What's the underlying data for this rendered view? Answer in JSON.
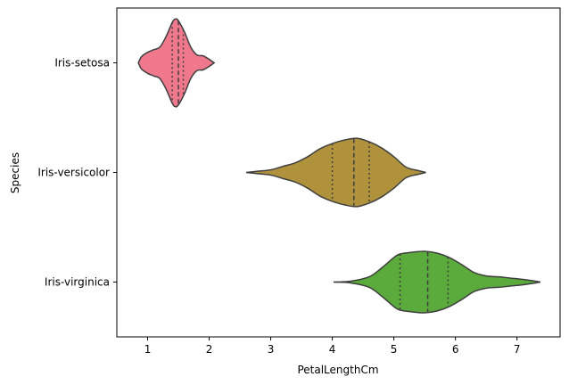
{
  "chart_data": {
    "type": "violin",
    "orientation": "horizontal",
    "title": "",
    "xlabel": "PetalLengthCm",
    "ylabel": "Species",
    "xlim": [
      0.5,
      7.7
    ],
    "xticks": [
      1,
      2,
      3,
      4,
      5,
      6,
      7
    ],
    "grid": false,
    "inner": "quartile",
    "categories": [
      "Iris-setosa",
      "Iris-versicolor",
      "Iris-virginica"
    ],
    "colors": [
      "#f0788c",
      "#b1923c",
      "#5aaa3c"
    ],
    "line_color": "#3f3f3f",
    "series": [
      {
        "category": "Iris-setosa",
        "min": 0.85,
        "max": 2.08,
        "quartiles": [
          1.4,
          1.5,
          1.58
        ],
        "density": [
          [
            0.85,
            0.0
          ],
          [
            0.9,
            0.07
          ],
          [
            1.0,
            0.12
          ],
          [
            1.1,
            0.15
          ],
          [
            1.2,
            0.18
          ],
          [
            1.3,
            0.3
          ],
          [
            1.4,
            0.46
          ],
          [
            1.45,
            0.5
          ],
          [
            1.5,
            0.48
          ],
          [
            1.6,
            0.35
          ],
          [
            1.7,
            0.18
          ],
          [
            1.8,
            0.09
          ],
          [
            1.9,
            0.08
          ],
          [
            2.0,
            0.04
          ],
          [
            2.08,
            0.0
          ]
        ]
      },
      {
        "category": "Iris-versicolor",
        "min": 2.6,
        "max": 5.52,
        "quartiles": [
          4.0,
          4.35,
          4.6
        ],
        "density": [
          [
            2.6,
            0.0
          ],
          [
            2.8,
            0.015
          ],
          [
            3.0,
            0.03
          ],
          [
            3.2,
            0.07
          ],
          [
            3.4,
            0.11
          ],
          [
            3.6,
            0.18
          ],
          [
            3.8,
            0.27
          ],
          [
            4.0,
            0.33
          ],
          [
            4.2,
            0.37
          ],
          [
            4.4,
            0.39
          ],
          [
            4.6,
            0.35
          ],
          [
            4.8,
            0.28
          ],
          [
            5.0,
            0.18
          ],
          [
            5.2,
            0.06
          ],
          [
            5.4,
            0.02
          ],
          [
            5.52,
            0.0
          ]
        ]
      },
      {
        "category": "Iris-virginica",
        "min": 4.02,
        "max": 7.38,
        "quartiles": [
          5.1,
          5.55,
          5.88
        ],
        "density": [
          [
            4.02,
            0.0
          ],
          [
            4.3,
            0.01
          ],
          [
            4.6,
            0.06
          ],
          [
            4.8,
            0.16
          ],
          [
            5.0,
            0.28
          ],
          [
            5.1,
            0.32
          ],
          [
            5.3,
            0.34
          ],
          [
            5.5,
            0.35
          ],
          [
            5.7,
            0.33
          ],
          [
            5.9,
            0.28
          ],
          [
            6.1,
            0.2
          ],
          [
            6.3,
            0.11
          ],
          [
            6.5,
            0.07
          ],
          [
            6.7,
            0.06
          ],
          [
            6.9,
            0.045
          ],
          [
            7.1,
            0.03
          ],
          [
            7.3,
            0.01
          ],
          [
            7.38,
            0.0
          ]
        ]
      }
    ]
  }
}
